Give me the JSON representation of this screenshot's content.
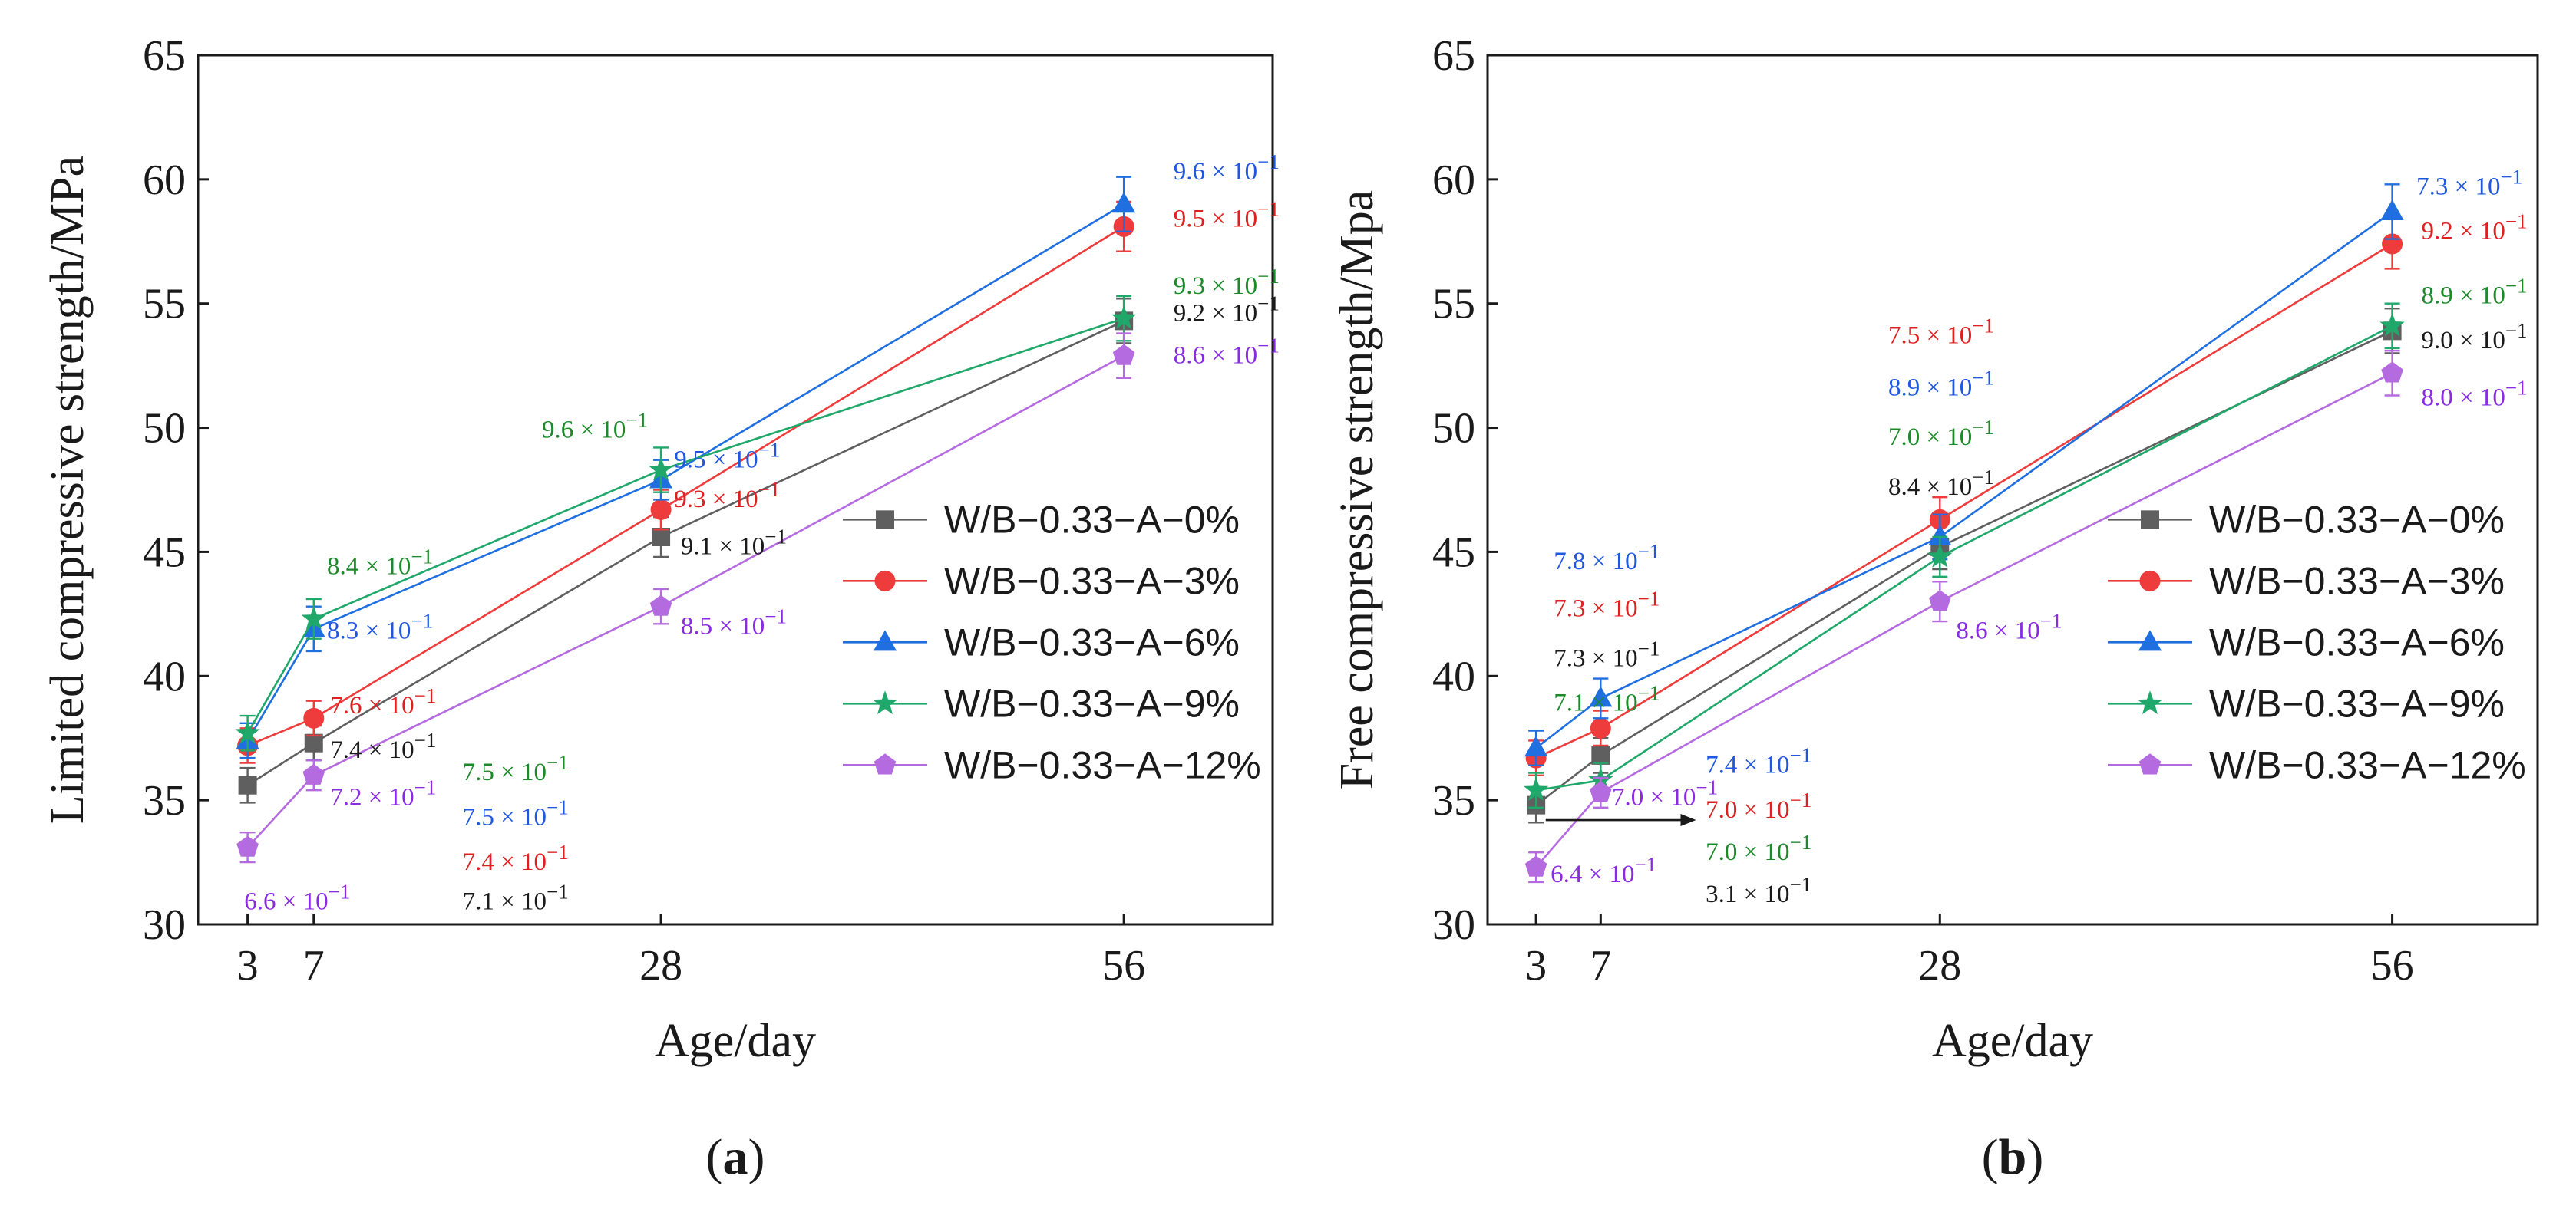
{
  "colors": {
    "0%": "#5f5f5f",
    "3%": "#ee3b3b",
    "6%": "#1f6fe0",
    "9%": "#1fa86a",
    "12%": "#b56be0",
    "annotation_black": "#1a1a1a",
    "annotation_red": "#e02020",
    "annotation_blue": "#1f57e0",
    "annotation_green": "#1d8a2a",
    "annotation_purple": "#8a2be2"
  },
  "chart_data": [
    {
      "type": "line",
      "panel_label": "(a)",
      "panel_letter": "a",
      "xlabel": "Age/day",
      "ylabel": "Limited compressive strength/MPa",
      "x": [
        3,
        7,
        28,
        56
      ],
      "xticks": [
        3,
        7,
        28,
        56
      ],
      "xlim": [
        0,
        65
      ],
      "ylim": [
        30,
        65
      ],
      "yticks": [
        30,
        35,
        40,
        45,
        50,
        55,
        60,
        65
      ],
      "legend_position": "center-right",
      "series": [
        {
          "key": "0%",
          "name": "W/B−0.33−A−0%",
          "marker": "square",
          "values": [
            35.6,
            37.3,
            45.6,
            54.3
          ],
          "errors": [
            0.7,
            0.7,
            0.8,
            0.9
          ]
        },
        {
          "key": "3%",
          "name": "W/B−0.33−A−3%",
          "marker": "circle",
          "values": [
            37.2,
            38.3,
            46.7,
            58.1
          ],
          "errors": [
            0.7,
            0.7,
            0.8,
            1.0
          ]
        },
        {
          "key": "6%",
          "name": "W/B−0.33−A−6%",
          "marker": "triangle",
          "values": [
            37.4,
            41.9,
            47.9,
            59.0
          ],
          "errors": [
            0.7,
            0.9,
            0.8,
            1.1
          ]
        },
        {
          "key": "9%",
          "name": "W/B−0.33−A−9%",
          "marker": "star",
          "values": [
            37.7,
            42.3,
            48.3,
            54.4
          ],
          "errors": [
            0.7,
            0.8,
            0.9,
            0.9
          ]
        },
        {
          "key": "12%",
          "name": "W/B−0.33−A−12%",
          "marker": "pentagon",
          "values": [
            33.1,
            36.0,
            42.8,
            52.9
          ],
          "errors": [
            0.6,
            0.6,
            0.7,
            0.9
          ]
        }
      ],
      "annotations": [
        {
          "base": "9.6 × 10",
          "exp": "−1",
          "color": "annotation_blue",
          "day": 59,
          "val": 60.0
        },
        {
          "base": "9.5 × 10",
          "exp": "−1",
          "color": "annotation_red",
          "day": 59,
          "val": 58.1
        },
        {
          "base": "9.3 × 10",
          "exp": "−1",
          "color": "annotation_green",
          "day": 59,
          "val": 55.4
        },
        {
          "base": "9.2 × 10",
          "exp": "−1",
          "color": "annotation_black",
          "day": 59,
          "val": 54.3
        },
        {
          "base": "8.6 × 10",
          "exp": "−1",
          "color": "annotation_purple",
          "day": 59,
          "val": 52.6
        },
        {
          "base": "9.6 × 10",
          "exp": "−1",
          "color": "annotation_green",
          "day": 20.8,
          "val": 49.6
        },
        {
          "base": "9.5 × 10",
          "exp": "−1",
          "color": "annotation_blue",
          "day": 28.8,
          "val": 48.4
        },
        {
          "base": "9.3 × 10",
          "exp": "−1",
          "color": "annotation_red",
          "day": 28.8,
          "val": 46.8
        },
        {
          "base": "9.1 × 10",
          "exp": "−1",
          "color": "annotation_black",
          "day": 29.2,
          "val": 44.9
        },
        {
          "base": "8.5 × 10",
          "exp": "−1",
          "color": "annotation_purple",
          "day": 29.2,
          "val": 41.7
        },
        {
          "base": "8.4 × 10",
          "exp": "−1",
          "color": "annotation_green",
          "day": 7.8,
          "val": 44.1
        },
        {
          "base": "8.3 × 10",
          "exp": "−1",
          "color": "annotation_blue",
          "day": 7.8,
          "val": 41.5
        },
        {
          "base": "7.6 × 10",
          "exp": "−1",
          "color": "annotation_red",
          "day": 8.0,
          "val": 38.5
        },
        {
          "base": "7.4 × 10",
          "exp": "−1",
          "color": "annotation_black",
          "day": 8.0,
          "val": 36.7
        },
        {
          "base": "7.2 × 10",
          "exp": "−1",
          "color": "annotation_purple",
          "day": 8.0,
          "val": 34.8
        },
        {
          "base": "7.5 × 10",
          "exp": "−1",
          "color": "annotation_green",
          "day": 16.0,
          "val": 35.8
        },
        {
          "base": "7.5 × 10",
          "exp": "−1",
          "color": "annotation_blue",
          "day": 16.0,
          "val": 34.0
        },
        {
          "base": "7.4 × 10",
          "exp": "−1",
          "color": "annotation_red",
          "day": 16.0,
          "val": 32.2
        },
        {
          "base": "7.1 × 10",
          "exp": "−1",
          "color": "annotation_black",
          "day": 16.0,
          "val": 30.6
        },
        {
          "base": "6.6 × 10",
          "exp": "−1",
          "color": "annotation_purple",
          "day": 2.8,
          "val": 30.6
        }
      ]
    },
    {
      "type": "line",
      "panel_label": "(b)",
      "panel_letter": "b",
      "xlabel": "Age/day",
      "ylabel": "Free compressive strength/Mpa",
      "x": [
        3,
        7,
        28,
        56
      ],
      "xticks": [
        3,
        7,
        28,
        56
      ],
      "xlim": [
        0,
        65
      ],
      "ylim": [
        30,
        65
      ],
      "yticks": [
        30,
        35,
        40,
        45,
        50,
        55,
        60,
        65
      ],
      "legend_position": "center-right",
      "series": [
        {
          "key": "0%",
          "name": "W/B−0.33−A−0%",
          "marker": "square",
          "values": [
            34.8,
            36.8,
            45.2,
            53.9
          ],
          "errors": [
            0.7,
            0.7,
            0.9,
            0.9
          ]
        },
        {
          "key": "3%",
          "name": "W/B−0.33−A−3%",
          "marker": "circle",
          "values": [
            36.7,
            37.9,
            46.3,
            57.4
          ],
          "errors": [
            0.7,
            0.7,
            0.9,
            1.0
          ]
        },
        {
          "key": "6%",
          "name": "W/B−0.33−A−6%",
          "marker": "triangle",
          "values": [
            37.1,
            39.1,
            45.6,
            58.7
          ],
          "errors": [
            0.7,
            0.8,
            0.9,
            1.1
          ]
        },
        {
          "key": "9%",
          "name": "W/B−0.33−A−9%",
          "marker": "star",
          "values": [
            35.4,
            35.8,
            44.8,
            54.1
          ],
          "errors": [
            0.7,
            0.7,
            0.8,
            0.9
          ]
        },
        {
          "key": "12%",
          "name": "W/B−0.33−A−12%",
          "marker": "pentagon",
          "values": [
            32.3,
            35.3,
            43.0,
            52.2
          ],
          "errors": [
            0.6,
            0.6,
            0.8,
            0.9
          ]
        }
      ],
      "annotations": [
        {
          "base": "7.3 × 10",
          "exp": "−1",
          "color": "annotation_blue",
          "day": 57.5,
          "val": 59.4
        },
        {
          "base": "9.2 × 10",
          "exp": "−1",
          "color": "annotation_red",
          "day": 57.8,
          "val": 57.6
        },
        {
          "base": "8.9 × 10",
          "exp": "−1",
          "color": "annotation_green",
          "day": 57.8,
          "val": 55.0
        },
        {
          "base": "9.0 × 10",
          "exp": "−1",
          "color": "annotation_black",
          "day": 57.8,
          "val": 53.2
        },
        {
          "base": "8.0 × 10",
          "exp": "−1",
          "color": "annotation_purple",
          "day": 57.8,
          "val": 50.9
        },
        {
          "base": "7.5 × 10",
          "exp": "−1",
          "color": "annotation_red",
          "day": 24.8,
          "val": 53.4
        },
        {
          "base": "8.9 × 10",
          "exp": "−1",
          "color": "annotation_blue",
          "day": 24.8,
          "val": 51.3
        },
        {
          "base": "7.0 × 10",
          "exp": "−1",
          "color": "annotation_green",
          "day": 24.8,
          "val": 49.3
        },
        {
          "base": "8.4 × 10",
          "exp": "−1",
          "color": "annotation_black",
          "day": 24.8,
          "val": 47.3
        },
        {
          "base": "8.6 × 10",
          "exp": "−1",
          "color": "annotation_purple",
          "day": 29.0,
          "val": 41.5
        },
        {
          "base": "7.8 × 10",
          "exp": "−1",
          "color": "annotation_blue",
          "day": 4.1,
          "val": 44.3
        },
        {
          "base": "7.3 × 10",
          "exp": "−1",
          "color": "annotation_red",
          "day": 4.1,
          "val": 42.4
        },
        {
          "base": "7.3 × 10",
          "exp": "−1",
          "color": "annotation_black",
          "day": 4.1,
          "val": 40.4
        },
        {
          "base": "7.1 × 10",
          "exp": "−1",
          "color": "annotation_green",
          "day": 4.1,
          "val": 38.6
        },
        {
          "base": "7.0 × 10",
          "exp": "−1",
          "color": "annotation_purple",
          "day": 7.7,
          "val": 34.8
        },
        {
          "base": "7.4 × 10",
          "exp": "−1",
          "color": "annotation_blue",
          "day": 13.5,
          "val": 36.1
        },
        {
          "base": "7.0 × 10",
          "exp": "−1",
          "color": "annotation_red",
          "day": 13.5,
          "val": 34.3
        },
        {
          "base": "7.0 × 10",
          "exp": "−1",
          "color": "annotation_green",
          "day": 13.5,
          "val": 32.6
        },
        {
          "base": "3.1 × 10",
          "exp": "−1",
          "color": "annotation_black",
          "day": 13.5,
          "val": 30.9
        },
        {
          "base": "6.4 × 10",
          "exp": "−1",
          "color": "annotation_purple",
          "day": 3.9,
          "val": 31.7
        }
      ],
      "arrow": {
        "from_day": 3.6,
        "from_val": 34.2,
        "to_day": 12.9,
        "to_val": 34.2
      }
    }
  ]
}
